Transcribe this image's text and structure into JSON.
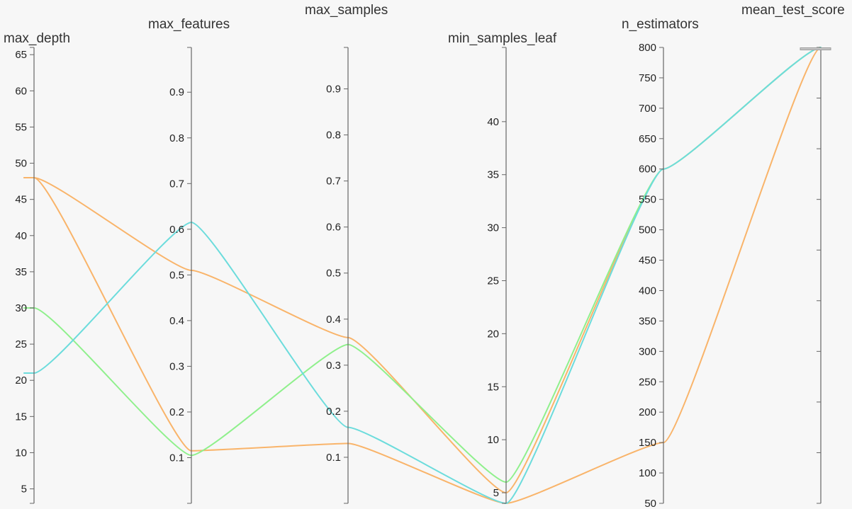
{
  "chart_data": {
    "type": "parallel_coordinates",
    "dimensions": [
      {
        "key": "max_depth",
        "label": "max_depth",
        "range": [
          3,
          66
        ],
        "ticks": [
          5,
          10,
          15,
          20,
          25,
          30,
          35,
          40,
          45,
          50,
          55,
          60,
          65
        ],
        "tick_labels": true
      },
      {
        "key": "max_features",
        "label": "max_features",
        "range": [
          0.0,
          0.998
        ],
        "ticks": [
          0.1,
          0.2,
          0.3,
          0.4,
          0.5,
          0.6,
          0.7,
          0.8,
          0.9
        ],
        "tick_labels": true
      },
      {
        "key": "max_samples",
        "label": "max_samples",
        "range": [
          0.0,
          0.99
        ],
        "ticks": [
          0.1,
          0.2,
          0.3,
          0.4,
          0.5,
          0.6,
          0.7,
          0.8,
          0.9
        ],
        "tick_labels": true
      },
      {
        "key": "min_samples_leaf",
        "label": "min_samples_leaf",
        "range": [
          4,
          47
        ],
        "ticks": [
          5,
          10,
          15,
          20,
          25,
          30,
          35,
          40
        ],
        "tick_labels": true
      },
      {
        "key": "n_estimators",
        "label": "n_estimators",
        "range": [
          50,
          800
        ],
        "ticks": [
          50,
          100,
          150,
          200,
          250,
          300,
          350,
          400,
          450,
          500,
          550,
          600,
          650,
          700,
          750,
          800
        ],
        "tick_labels": true
      },
      {
        "key": "mean_test_score",
        "label": "mean_test_score",
        "range": [
          0,
          9
        ],
        "ticks": [
          1,
          2,
          3,
          4,
          5,
          6,
          7,
          8,
          9
        ],
        "tick_labels": false
      }
    ],
    "series": [
      {
        "color": "#f9b46a",
        "values": {
          "max_depth": 48,
          "max_features": 0.115,
          "max_samples": 0.13,
          "min_samples_leaf": 4,
          "n_estimators": 150,
          "mean_test_score": 9
        }
      },
      {
        "color": "#f9b46a",
        "values": {
          "max_depth": 48,
          "max_features": 0.51,
          "max_samples": 0.36,
          "min_samples_leaf": 5,
          "n_estimators": 600,
          "mean_test_score": 9
        }
      },
      {
        "color": "#8ff08c",
        "values": {
          "max_depth": 30,
          "max_features": 0.105,
          "max_samples": 0.345,
          "min_samples_leaf": 6,
          "n_estimators": 600,
          "mean_test_score": 9
        }
      },
      {
        "color": "#6cdcdc",
        "values": {
          "max_depth": 21,
          "max_features": 0.615,
          "max_samples": 0.165,
          "min_samples_leaf": 4,
          "n_estimators": 600,
          "mean_test_score": 9
        }
      }
    ]
  }
}
